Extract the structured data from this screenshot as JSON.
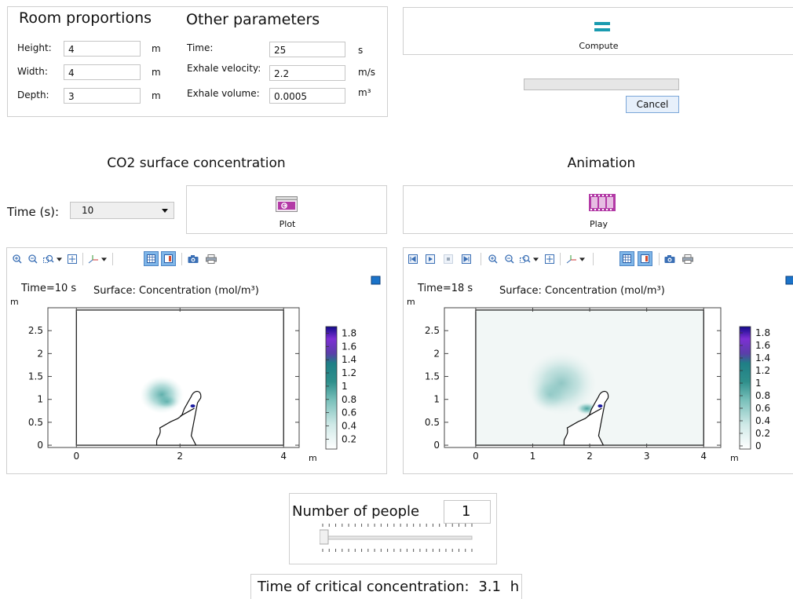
{
  "room": {
    "title": "Room proportions",
    "height": {
      "label": "Height:",
      "value": "4",
      "unit": "m"
    },
    "width": {
      "label": "Width:",
      "value": "4",
      "unit": "m"
    },
    "depth": {
      "label": "Depth:",
      "value": "3",
      "unit": "m"
    }
  },
  "other": {
    "title": "Other parameters",
    "time": {
      "label": "Time:",
      "value": "25",
      "unit": "s"
    },
    "exhale_velocity": {
      "label": "Exhale velocity:",
      "value": "2.2",
      "unit": "m/s"
    },
    "exhale_volume": {
      "label": "Exhale volume:",
      "value": "0.0005",
      "unit": "m³"
    }
  },
  "compute": {
    "label": "Compute",
    "cancel": "Cancel",
    "progress": 0
  },
  "left": {
    "heading": "CO2 surface concentration",
    "time_label": "Time (s):",
    "time_value": "10",
    "plot_label": "Plot"
  },
  "right": {
    "heading": "Animation",
    "play_label": "Play"
  },
  "plots": {
    "left": {
      "time_text": "Time=10 s",
      "title": "Surface: Concentration (mol/m³)",
      "yunit": "m",
      "xunit": "m",
      "xticks": [
        "0",
        "2",
        "4"
      ],
      "yticks": [
        "0",
        "0.5",
        "1",
        "1.5",
        "2",
        "2.5"
      ],
      "cbticks": [
        "1.8",
        "1.6",
        "1.4",
        "1.2",
        "1",
        "0.8",
        "0.6",
        "0.4",
        "0.2"
      ]
    },
    "right": {
      "time_text": "Time=18 s",
      "title": "Surface: Concentration (mol/m³)",
      "yunit": "m",
      "xunit": "m",
      "xticks": [
        "0",
        "1",
        "2",
        "3",
        "4"
      ],
      "yticks": [
        "0",
        "0.5",
        "1",
        "1.5",
        "2",
        "2.5"
      ],
      "cbticks": [
        "1.8",
        "1.6",
        "1.4",
        "1.2",
        "1",
        "0.8",
        "0.6",
        "0.4",
        "0.2",
        "0"
      ]
    }
  },
  "people": {
    "label": "Number of people",
    "value": "1",
    "slider_fraction": 0
  },
  "critical": {
    "label": "Time of critical concentration:",
    "value": "3.1",
    "unit": "h"
  },
  "colors": {
    "accent": "#1a9bb0",
    "plot_icon": "#b33aa6",
    "selected_tool": "#7fb6e8"
  }
}
